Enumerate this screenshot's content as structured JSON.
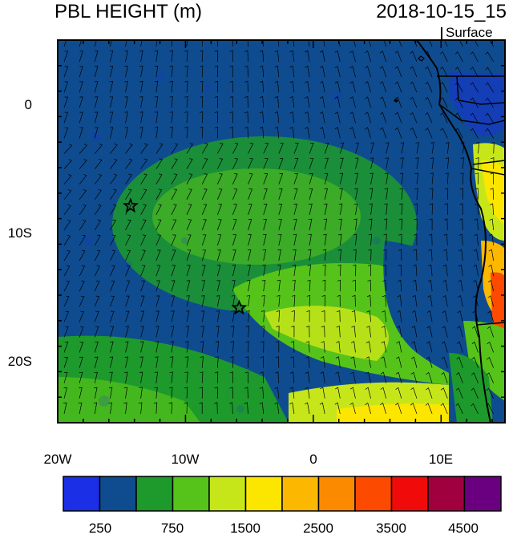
{
  "title": {
    "left": "PBL HEIGHT (m)",
    "right": "2018-10-15_15",
    "sub": "Surface"
  },
  "axes": {
    "x_ticks": [
      {
        "lon": -20,
        "label": "20W"
      },
      {
        "lon": -10,
        "label": "10W"
      },
      {
        "lon": 0,
        "label": "0"
      },
      {
        "lon": 10,
        "label": "10E"
      }
    ],
    "y_ticks": [
      {
        "lat": 0,
        "label": "0"
      },
      {
        "lat": -10,
        "label": "10S"
      },
      {
        "lat": -20,
        "label": "20S"
      }
    ],
    "lon_range": [
      -20,
      15
    ],
    "lat_range": [
      -25,
      5
    ]
  },
  "markers": [
    {
      "name": "star-1",
      "lon": -14.3,
      "lat": -8.0
    },
    {
      "name": "star-2",
      "lon": -5.8,
      "lat": -16.0
    }
  ],
  "colorbar": {
    "colors": [
      "#1a2fe6",
      "#0f4c8f",
      "#1d9a2b",
      "#56c31a",
      "#c7e61a",
      "#fce600",
      "#fcb800",
      "#fc8a00",
      "#fc4a00",
      "#f00a0a",
      "#a1003f",
      "#6a007f"
    ],
    "labels": [
      "250",
      "750",
      "1500",
      "2500",
      "3500",
      "4500"
    ]
  }
}
